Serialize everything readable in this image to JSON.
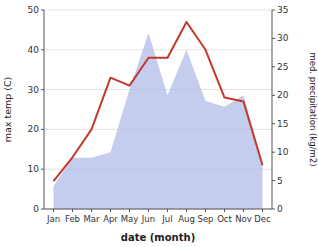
{
  "chart_data": {
    "type": "line",
    "xlabel": "date (month)",
    "ylabel": "max temp (C)",
    "y2label": "med. precipitation (kg/m2)",
    "categories": [
      "Jan",
      "Feb",
      "Mar",
      "Apr",
      "May",
      "Jun",
      "Jul",
      "Aug",
      "Sep",
      "Oct",
      "Nov",
      "Dec"
    ],
    "series": [
      {
        "type": "area",
        "axis": "y2",
        "color": "#b0bce8",
        "values": [
          4,
          9,
          9,
          10,
          21,
          31,
          20,
          28,
          19,
          18,
          20,
          8
        ]
      },
      {
        "type": "line",
        "color": "#c0392b",
        "values": [
          7,
          13,
          20,
          33,
          31,
          38,
          38,
          47,
          40,
          28,
          27,
          11
        ]
      }
    ],
    "ylim": [
      0,
      50
    ],
    "yticks": [
      0,
      10,
      20,
      30,
      40,
      50
    ],
    "y2lim": [
      0,
      35
    ],
    "y2ticks": [
      0,
      5,
      10,
      15,
      20,
      25,
      30,
      35
    ],
    "grid": true
  }
}
